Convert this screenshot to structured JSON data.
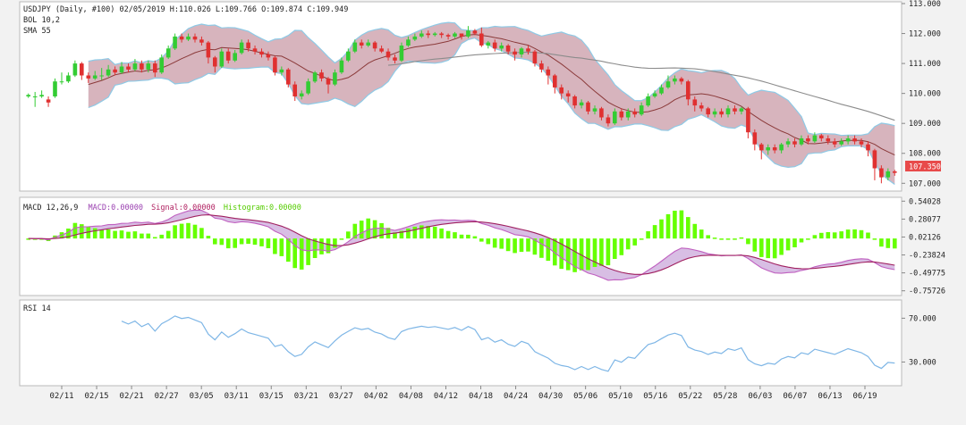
{
  "header": {
    "line1": "USDJPY (Daily, #100)  02/05/2019 H:110.026 L:109.766 O:109.874 C:109.949",
    "line2": "BOL 10,2",
    "line3": "SMA 55"
  },
  "macd_header": {
    "label": "MACD 12,26,9",
    "macd": "MACD:0.00000",
    "signal": "Signal:0.00000",
    "histogram": "Histogram:0.00000"
  },
  "rsi_header": {
    "label": "RSI 14"
  },
  "colors": {
    "up": "#33cc33",
    "down": "#e03030",
    "band_fill": "#c99ba7",
    "band_edge": "#8ecae6",
    "bb_mid": "#8b3a3a",
    "sma": "#8c8c8c",
    "macd_line": "#c060c0",
    "signal_line": "#a02060",
    "hist": "#66ff00",
    "rsi": "#7eb6e6",
    "price_tag": "#e84a4a"
  },
  "chart_data": [
    {
      "type": "candlestick",
      "name": "price",
      "ylim": [
        106.8,
        113.0
      ],
      "yticks": [
        "113.000",
        "112.000",
        "111.000",
        "110.000",
        "109.000",
        "108.000",
        "107.000"
      ],
      "last_price": "107.350",
      "candles": [
        [
          109.9,
          109.95,
          110.0,
          109.85
        ],
        [
          109.9,
          109.9,
          110.05,
          109.55
        ],
        [
          109.9,
          109.95,
          110.1,
          109.85
        ],
        [
          109.8,
          109.7,
          109.9,
          109.55
        ],
        [
          109.9,
          110.4,
          110.5,
          109.85
        ],
        [
          110.4,
          110.4,
          110.7,
          110.3
        ],
        [
          110.4,
          110.6,
          110.7,
          110.35
        ],
        [
          110.6,
          111.0,
          111.1,
          110.55
        ],
        [
          111.0,
          110.6,
          111.05,
          110.45
        ],
        [
          110.6,
          110.5,
          110.7,
          110.35
        ],
        [
          110.5,
          110.6,
          110.75,
          110.45
        ],
        [
          110.6,
          110.6,
          110.85,
          110.45
        ],
        [
          110.6,
          110.8,
          110.95,
          110.55
        ],
        [
          110.8,
          110.7,
          110.9,
          110.6
        ],
        [
          110.7,
          110.9,
          111.05,
          110.65
        ],
        [
          110.9,
          110.8,
          111.0,
          110.7
        ],
        [
          110.8,
          111.0,
          111.15,
          110.75
        ],
        [
          111.0,
          110.8,
          111.1,
          110.7
        ],
        [
          110.8,
          111.0,
          111.1,
          110.7
        ],
        [
          111.0,
          110.7,
          111.1,
          110.55
        ],
        [
          110.7,
          111.2,
          111.3,
          110.65
        ],
        [
          111.2,
          111.5,
          111.6,
          111.15
        ],
        [
          111.5,
          111.9,
          112.0,
          111.45
        ],
        [
          111.9,
          111.8,
          112.0,
          111.7
        ],
        [
          111.8,
          111.9,
          112.0,
          111.75
        ],
        [
          111.9,
          111.8,
          112.0,
          111.7
        ],
        [
          111.8,
          111.7,
          111.9,
          111.6
        ],
        [
          111.7,
          111.2,
          111.75,
          111.0
        ],
        [
          111.2,
          110.9,
          111.25,
          110.7
        ],
        [
          110.9,
          111.4,
          111.5,
          110.85
        ],
        [
          111.4,
          111.1,
          111.5,
          111.0
        ],
        [
          111.1,
          111.35,
          111.45,
          111.05
        ],
        [
          111.35,
          111.7,
          111.8,
          111.3
        ],
        [
          111.7,
          111.5,
          111.8,
          111.4
        ],
        [
          111.5,
          111.4,
          111.6,
          111.3
        ],
        [
          111.4,
          111.3,
          111.5,
          111.2
        ],
        [
          111.3,
          111.2,
          111.4,
          111.1
        ],
        [
          111.2,
          110.7,
          111.25,
          110.6
        ],
        [
          110.7,
          110.8,
          110.9,
          110.6
        ],
        [
          110.8,
          110.3,
          110.85,
          110.2
        ],
        [
          110.3,
          109.9,
          110.4,
          109.75
        ],
        [
          109.9,
          110.0,
          110.1,
          109.8
        ],
        [
          110.0,
          110.4,
          110.5,
          109.95
        ],
        [
          110.4,
          110.7,
          110.75,
          110.35
        ],
        [
          110.7,
          110.5,
          110.8,
          110.4
        ],
        [
          110.5,
          110.3,
          110.55,
          110.0
        ],
        [
          110.3,
          110.7,
          110.8,
          110.25
        ],
        [
          110.7,
          111.1,
          111.2,
          110.65
        ],
        [
          111.1,
          111.4,
          111.5,
          111.05
        ],
        [
          111.4,
          111.7,
          111.8,
          111.35
        ],
        [
          111.7,
          111.6,
          111.8,
          111.5
        ],
        [
          111.6,
          111.7,
          111.8,
          111.55
        ],
        [
          111.7,
          111.5,
          111.75,
          111.4
        ],
        [
          111.5,
          111.4,
          111.6,
          111.35
        ],
        [
          111.4,
          111.2,
          111.5,
          111.1
        ],
        [
          111.2,
          111.1,
          111.3,
          111.0
        ],
        [
          111.1,
          111.6,
          111.7,
          111.05
        ],
        [
          111.6,
          111.8,
          111.9,
          111.55
        ],
        [
          111.8,
          111.9,
          112.0,
          111.75
        ],
        [
          111.9,
          112.0,
          112.1,
          111.85
        ],
        [
          112.0,
          111.95,
          112.1,
          111.85
        ],
        [
          111.95,
          112.0,
          112.05,
          111.9
        ],
        [
          112.0,
          111.95,
          112.05,
          111.85
        ],
        [
          111.95,
          111.9,
          112.0,
          111.8
        ],
        [
          111.9,
          112.0,
          112.05,
          111.85
        ],
        [
          112.0,
          111.9,
          112.0,
          111.8
        ],
        [
          111.9,
          112.1,
          112.25,
          111.85
        ],
        [
          112.1,
          112.0,
          112.15,
          111.95
        ],
        [
          112.0,
          111.6,
          112.2,
          111.55
        ],
        [
          111.6,
          111.7,
          111.75,
          111.5
        ],
        [
          111.7,
          111.5,
          111.8,
          111.4
        ],
        [
          111.5,
          111.6,
          111.7,
          111.4
        ],
        [
          111.6,
          111.4,
          111.65,
          111.3
        ],
        [
          111.4,
          111.3,
          111.5,
          111.1
        ],
        [
          111.3,
          111.5,
          111.55,
          111.2
        ],
        [
          111.5,
          111.4,
          111.6,
          111.3
        ],
        [
          111.4,
          111.0,
          111.45,
          110.9
        ],
        [
          111.0,
          110.8,
          111.1,
          110.7
        ],
        [
          110.8,
          110.6,
          110.9,
          110.3
        ],
        [
          110.6,
          110.2,
          110.65,
          110.0
        ],
        [
          110.2,
          110.0,
          110.3,
          109.8
        ],
        [
          110.0,
          109.9,
          110.1,
          109.7
        ],
        [
          109.9,
          109.6,
          109.95,
          109.5
        ],
        [
          109.6,
          109.7,
          109.8,
          109.5
        ],
        [
          109.7,
          109.4,
          109.75,
          109.3
        ],
        [
          109.4,
          109.5,
          109.6,
          109.3
        ],
        [
          109.5,
          109.2,
          109.55,
          109.1
        ],
        [
          109.2,
          109.0,
          109.3,
          108.9
        ],
        [
          109.0,
          109.4,
          109.5,
          108.95
        ],
        [
          109.4,
          109.2,
          109.5,
          109.1
        ],
        [
          109.2,
          109.4,
          109.5,
          109.1
        ],
        [
          109.4,
          109.3,
          109.5,
          109.2
        ],
        [
          109.3,
          109.6,
          109.7,
          109.25
        ],
        [
          109.6,
          109.9,
          110.0,
          109.55
        ],
        [
          109.9,
          110.0,
          110.1,
          109.85
        ],
        [
          110.0,
          110.2,
          110.3,
          109.95
        ],
        [
          110.2,
          110.4,
          110.6,
          110.15
        ],
        [
          110.4,
          110.5,
          110.6,
          110.3
        ],
        [
          110.5,
          110.4,
          110.55,
          110.3
        ],
        [
          110.4,
          109.8,
          110.45,
          109.6
        ],
        [
          109.8,
          109.6,
          109.9,
          109.4
        ],
        [
          109.6,
          109.5,
          109.7,
          109.4
        ],
        [
          109.5,
          109.3,
          109.55,
          109.2
        ],
        [
          109.3,
          109.4,
          109.5,
          109.2
        ],
        [
          109.4,
          109.3,
          109.5,
          109.2
        ],
        [
          109.3,
          109.5,
          109.6,
          109.2
        ],
        [
          109.5,
          109.4,
          109.6,
          109.3
        ],
        [
          109.4,
          109.5,
          109.55,
          109.3
        ],
        [
          109.5,
          108.7,
          109.55,
          108.5
        ],
        [
          108.7,
          108.3,
          108.8,
          108.1
        ],
        [
          108.3,
          108.1,
          108.35,
          107.8
        ],
        [
          108.1,
          108.2,
          108.3,
          107.95
        ],
        [
          108.2,
          108.1,
          108.3,
          108.0
        ],
        [
          108.1,
          108.3,
          108.35,
          108.0
        ],
        [
          108.3,
          108.4,
          108.5,
          108.2
        ],
        [
          108.4,
          108.3,
          108.5,
          108.2
        ],
        [
          108.3,
          108.5,
          108.6,
          108.25
        ],
        [
          108.5,
          108.4,
          108.6,
          108.3
        ],
        [
          108.4,
          108.6,
          108.7,
          108.35
        ],
        [
          108.6,
          108.5,
          108.65,
          108.4
        ],
        [
          108.5,
          108.4,
          108.6,
          108.3
        ],
        [
          108.4,
          108.3,
          108.5,
          108.2
        ],
        [
          108.3,
          108.4,
          108.5,
          108.25
        ],
        [
          108.4,
          108.5,
          108.6,
          108.3
        ],
        [
          108.5,
          108.4,
          108.6,
          108.3
        ],
        [
          108.4,
          108.3,
          108.5,
          108.2
        ],
        [
          108.3,
          108.1,
          108.4,
          107.9
        ],
        [
          108.1,
          107.5,
          108.15,
          107.1
        ],
        [
          107.5,
          107.2,
          107.6,
          107.0
        ],
        [
          107.2,
          107.4,
          107.5,
          107.1
        ],
        [
          107.4,
          107.35,
          107.45,
          107.25
        ]
      ]
    },
    {
      "type": "line",
      "name": "macd",
      "ylim": [
        -0.8,
        0.57
      ],
      "yticks": [
        "0.54028",
        "0.28077",
        "0.02126",
        "-0.23824",
        "-0.49775",
        "-0.75726"
      ]
    },
    {
      "type": "line",
      "name": "rsi",
      "ylim": [
        10,
        85
      ],
      "yticks": [
        "70.000",
        "30.000"
      ]
    }
  ],
  "x_dates": [
    "02/11",
    "02/15",
    "02/21",
    "02/27",
    "03/05",
    "03/11",
    "03/15",
    "03/21",
    "03/27",
    "04/02",
    "04/08",
    "04/12",
    "04/18",
    "04/24",
    "04/30",
    "05/06",
    "05/10",
    "05/16",
    "05/22",
    "05/28",
    "06/03",
    "06/07",
    "06/13",
    "06/19"
  ]
}
